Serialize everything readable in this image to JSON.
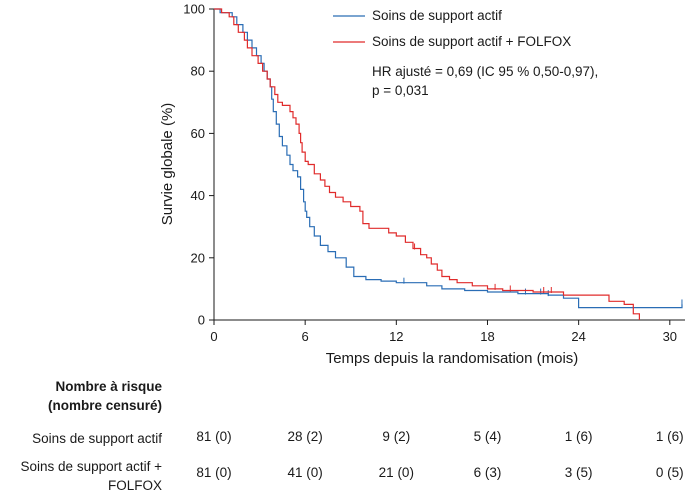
{
  "chart_data": {
    "type": "line",
    "subtype": "kaplan-meier",
    "xlabel": "Temps depuis la randomisation (mois)",
    "ylabel": "Survie globale (%)",
    "xlim": [
      0,
      31
    ],
    "ylim": [
      0,
      100
    ],
    "xticks": [
      0,
      6,
      12,
      18,
      24,
      30
    ],
    "yticks": [
      0,
      20,
      40,
      60,
      80,
      100
    ],
    "grid": false,
    "legend_position": "top-right",
    "annotation": [
      "HR ajusté = 0,69 (IC 95 % 0,50-0,97),",
      "p = 0,031"
    ],
    "series": [
      {
        "name": "Soins de support actif",
        "color": "#2a6db5",
        "steps": [
          [
            0,
            100
          ],
          [
            0.3,
            100
          ],
          [
            0.4,
            98.8
          ],
          [
            1.2,
            97.5
          ],
          [
            1.5,
            95
          ],
          [
            1.9,
            92.5
          ],
          [
            2.2,
            90
          ],
          [
            2.5,
            87.5
          ],
          [
            2.8,
            85
          ],
          [
            3.1,
            82.5
          ],
          [
            3.3,
            80
          ],
          [
            3.5,
            77.5
          ],
          [
            3.7,
            75
          ],
          [
            3.8,
            71
          ],
          [
            3.9,
            67
          ],
          [
            4.1,
            63
          ],
          [
            4.3,
            59
          ],
          [
            4.5,
            56
          ],
          [
            4.8,
            53
          ],
          [
            5.0,
            50
          ],
          [
            5.2,
            48
          ],
          [
            5.5,
            46
          ],
          [
            5.7,
            42
          ],
          [
            5.9,
            38
          ],
          [
            6.0,
            35
          ],
          [
            6.1,
            33
          ],
          [
            6.3,
            30
          ],
          [
            6.6,
            27
          ],
          [
            7.0,
            24
          ],
          [
            7.5,
            22
          ],
          [
            8.0,
            20
          ],
          [
            8.7,
            17
          ],
          [
            9.2,
            14
          ],
          [
            10,
            13
          ],
          [
            11,
            12.5
          ],
          [
            12,
            12
          ],
          [
            14,
            11
          ],
          [
            15,
            10
          ],
          [
            16.5,
            9.5
          ],
          [
            18,
            9
          ],
          [
            20,
            8.5
          ],
          [
            22,
            8
          ],
          [
            23,
            7
          ],
          [
            24,
            4
          ],
          [
            25,
            4
          ],
          [
            30,
            4
          ],
          [
            30.8,
            5
          ]
        ],
        "censor_x": [
          12.5,
          20.5,
          21.5,
          22,
          30.8
        ]
      },
      {
        "name": "Soins de support actif + FOLFOX",
        "color": "#e02b2b",
        "steps": [
          [
            0,
            100
          ],
          [
            0.5,
            98.8
          ],
          [
            1.0,
            97.5
          ],
          [
            1.3,
            95
          ],
          [
            1.6,
            92.5
          ],
          [
            2.0,
            90
          ],
          [
            2.2,
            87.5
          ],
          [
            2.5,
            85
          ],
          [
            2.9,
            82.5
          ],
          [
            3.2,
            80
          ],
          [
            3.5,
            77.5
          ],
          [
            3.7,
            75
          ],
          [
            4.0,
            72.5
          ],
          [
            4.2,
            70
          ],
          [
            4.5,
            69
          ],
          [
            5.0,
            67
          ],
          [
            5.2,
            65
          ],
          [
            5.4,
            63
          ],
          [
            5.6,
            60
          ],
          [
            5.7,
            57
          ],
          [
            5.8,
            54
          ],
          [
            6.0,
            51
          ],
          [
            6.2,
            50
          ],
          [
            6.6,
            47
          ],
          [
            7.0,
            45
          ],
          [
            7.3,
            43
          ],
          [
            7.6,
            41
          ],
          [
            8.0,
            39.5
          ],
          [
            8.5,
            38
          ],
          [
            9.0,
            36.5
          ],
          [
            9.6,
            35
          ],
          [
            9.8,
            31
          ],
          [
            10.2,
            29.5
          ],
          [
            11.5,
            28
          ],
          [
            12,
            27
          ],
          [
            12.6,
            25
          ],
          [
            13.1,
            23
          ],
          [
            13.6,
            21
          ],
          [
            14,
            20
          ],
          [
            14.3,
            18
          ],
          [
            14.7,
            16
          ],
          [
            15,
            14
          ],
          [
            15.5,
            13
          ],
          [
            16,
            12
          ],
          [
            17,
            11
          ],
          [
            18,
            10
          ],
          [
            19,
            9.5
          ],
          [
            21,
            9
          ],
          [
            23,
            8
          ],
          [
            24,
            8
          ],
          [
            26,
            6
          ],
          [
            27,
            5
          ],
          [
            27.6,
            2
          ],
          [
            28,
            0
          ]
        ],
        "censor_x": [
          13.2,
          18.5,
          19.5,
          21.7,
          22.2
        ]
      }
    ],
    "risk_table": {
      "header": [
        "Nombre à risque",
        "(nombre censuré)"
      ],
      "timepoints": [
        0,
        6,
        12,
        18,
        24,
        30
      ],
      "rows": [
        {
          "label": [
            "Soins de support actif"
          ],
          "values": [
            "81 (0)",
            "28 (2)",
            "9 (2)",
            "5 (4)",
            "1 (6)",
            "1 (6)"
          ]
        },
        {
          "label": [
            "Soins de support actif +",
            "FOLFOX"
          ],
          "values": [
            "81 (0)",
            "41 (0)",
            "21 (0)",
            "6 (3)",
            "3 (5)",
            "0 (5)"
          ]
        }
      ]
    }
  }
}
